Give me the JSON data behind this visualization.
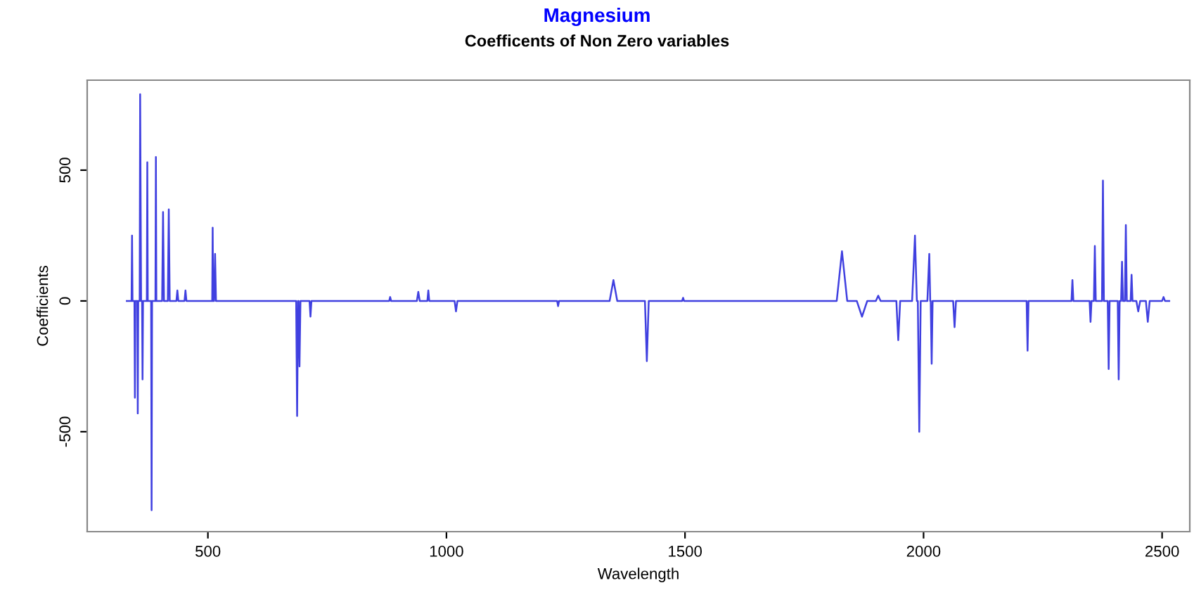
{
  "chart_data": {
    "type": "line",
    "title": "Magnesium",
    "subtitle": "Coefficents of Non Zero variables",
    "xlabel": "Wavelength",
    "ylabel": "Coefficients",
    "xlim": [
      247,
      2558
    ],
    "ylim": [
      -882,
      844
    ],
    "xticks": [
      500,
      1000,
      1500,
      2000,
      2500
    ],
    "yticks": [
      -500,
      0,
      500
    ],
    "grid": false,
    "legend": false,
    "series": [
      {
        "color": "#4040e0",
        "x": [
          330,
          340,
          341,
          342,
          346,
          347,
          348,
          352,
          353,
          354,
          357,
          358,
          360,
          362,
          363,
          364,
          372,
          373,
          374,
          381,
          382,
          383,
          390,
          391,
          392,
          404,
          406,
          408,
          416,
          418,
          420,
          434,
          436,
          438,
          451,
          453,
          455,
          509,
          510,
          511,
          513,
          515,
          517,
          685,
          687,
          689,
          690,
          692,
          694,
          713,
          715,
          717,
          880,
          882,
          884,
          938,
          941,
          944,
          960,
          962,
          964,
          1017,
          1020,
          1023,
          1232,
          1234,
          1236,
          1342,
          1350,
          1358,
          1416,
          1420,
          1424,
          1494,
          1496,
          1498,
          1818,
          1829,
          1840,
          1860,
          1871,
          1882,
          1900,
          1905,
          1910,
          1943,
          1947,
          1951,
          1976,
          1982,
          1986,
          1988,
          1991,
          1994,
          2008,
          2012,
          2014,
          2015,
          2017,
          2019,
          2062,
          2065,
          2068,
          2216,
          2218,
          2220,
          2310,
          2312,
          2314,
          2348,
          2350,
          2352,
          2357,
          2359,
          2361,
          2374,
          2376,
          2378,
          2386,
          2388,
          2390,
          2407,
          2409,
          2411,
          2414,
          2416,
          2418,
          2422,
          2424,
          2426,
          2434,
          2436,
          2438,
          2446,
          2450,
          2454,
          2466,
          2470,
          2474,
          2500,
          2503,
          2506,
          2515
        ],
        "values": [
          0,
          0,
          250,
          0,
          0,
          -370,
          0,
          0,
          -430,
          0,
          0,
          790,
          0,
          0,
          -300,
          0,
          0,
          530,
          0,
          0,
          -800,
          0,
          0,
          550,
          0,
          0,
          340,
          0,
          0,
          350,
          0,
          0,
          40,
          0,
          0,
          40,
          0,
          0,
          280,
          0,
          0,
          180,
          0,
          0,
          -440,
          0,
          0,
          -250,
          0,
          0,
          -60,
          0,
          0,
          15,
          0,
          0,
          35,
          0,
          0,
          40,
          0,
          0,
          -40,
          0,
          0,
          -20,
          0,
          0,
          80,
          0,
          0,
          -230,
          0,
          0,
          12,
          0,
          0,
          190,
          0,
          0,
          -60,
          0,
          0,
          20,
          0,
          0,
          -150,
          0,
          0,
          250,
          0,
          0,
          -500,
          0,
          0,
          180,
          0,
          0,
          -240,
          0,
          0,
          -100,
          0,
          0,
          -190,
          0,
          0,
          80,
          0,
          0,
          -80,
          0,
          0,
          210,
          0,
          0,
          460,
          0,
          0,
          -260,
          0,
          0,
          -300,
          0,
          0,
          150,
          0,
          0,
          290,
          0,
          0,
          100,
          0,
          0,
          -40,
          0,
          0,
          -80,
          0,
          0,
          15,
          0,
          0
        ]
      }
    ]
  }
}
